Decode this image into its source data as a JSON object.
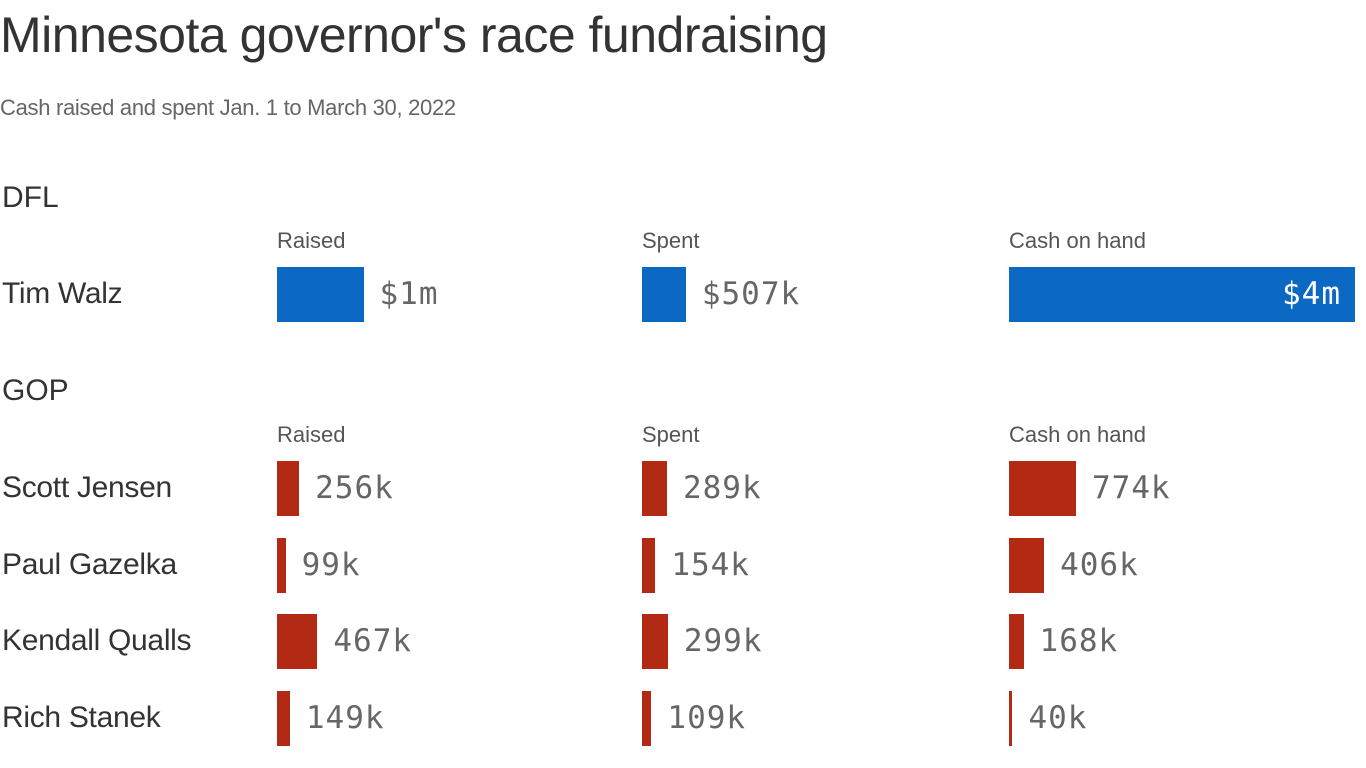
{
  "chart_data": {
    "type": "bar",
    "title": "Minnesota governor's race fundraising",
    "subtitle": "Cash raised and spent Jan. 1 to March 30, 2022",
    "colors": {
      "DFL": "#0b69c4",
      "GOP": "#b22a14"
    },
    "metrics": [
      "Raised",
      "Spent",
      "Cash on hand"
    ],
    "groups": [
      {
        "name": "DFL",
        "party": "DFL",
        "candidates": [
          {
            "name": "Tim Walz",
            "values": [
              1000000,
              507000,
              4000000
            ],
            "labels": [
              "$1m",
              "$507k",
              "$4m"
            ]
          }
        ]
      },
      {
        "name": "GOP",
        "party": "GOP",
        "candidates": [
          {
            "name": "Scott Jensen",
            "values": [
              256000,
              289000,
              774000
            ],
            "labels": [
              "256k",
              "289k",
              "774k"
            ]
          },
          {
            "name": "Paul Gazelka",
            "values": [
              99000,
              154000,
              406000
            ],
            "labels": [
              "99k",
              "154k",
              "406k"
            ]
          },
          {
            "name": "Kendall Qualls",
            "values": [
              467000,
              299000,
              168000
            ],
            "labels": [
              "467k",
              "299k",
              "168k"
            ]
          },
          {
            "name": "Rich Stanek",
            "values": [
              149000,
              109000,
              40000
            ],
            "labels": [
              "149k",
              "109k",
              "40k"
            ]
          }
        ]
      }
    ]
  }
}
